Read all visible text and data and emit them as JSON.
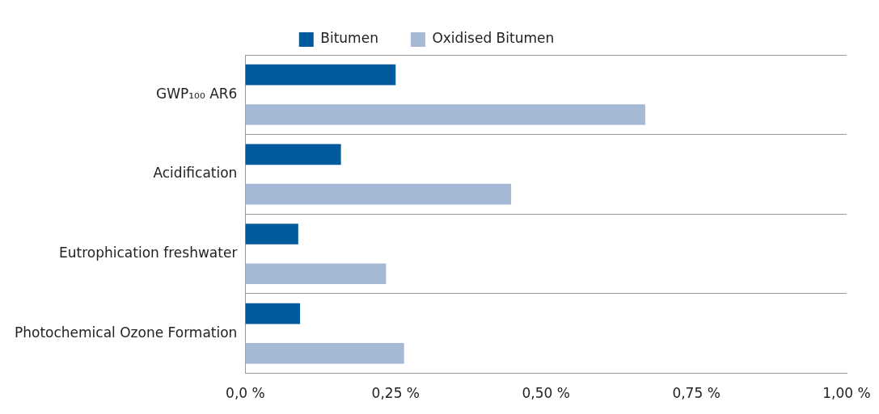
{
  "chart_data": {
    "type": "bar",
    "orientation": "horizontal",
    "categories": [
      "GWP₁₀₀ AR6",
      "Acidification",
      "Eutrophication freshwater",
      "Photochemical Ozone Formation"
    ],
    "series": [
      {
        "name": "Bitumen",
        "color": "#005a9c",
        "values": [
          0.25,
          0.159,
          0.088,
          0.091
        ]
      },
      {
        "name": "Oxidised Bitumen",
        "color": "#a5b8d6",
        "values": [
          0.665,
          0.442,
          0.234,
          0.264
        ]
      }
    ],
    "xlim": [
      0,
      1
    ],
    "xticks": [
      {
        "value": 0,
        "label": "0,0 %"
      },
      {
        "value": 0.25,
        "label": "0,25 %"
      },
      {
        "value": 0.5,
        "label": "0,50 %"
      },
      {
        "value": 0.75,
        "label": "0,75 %"
      },
      {
        "value": 1,
        "label": "1,00 %"
      }
    ],
    "grid": "y",
    "legend": "top"
  }
}
